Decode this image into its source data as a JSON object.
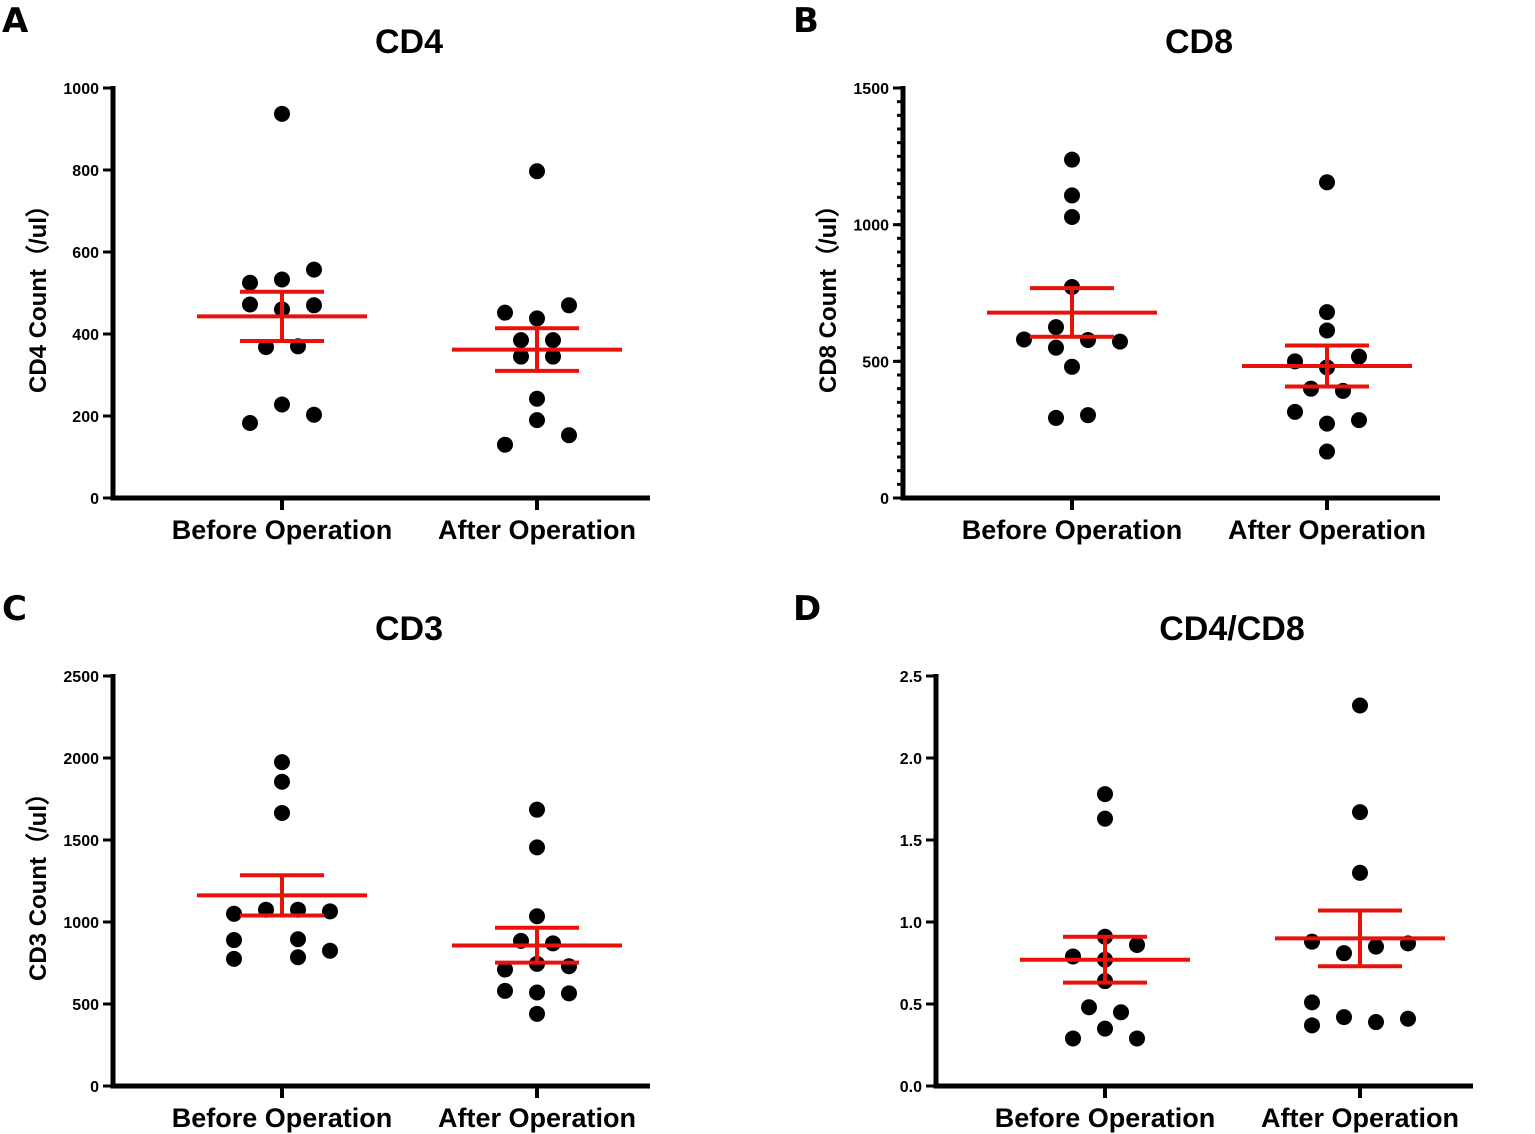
{
  "figure": {
    "marker_color": "#000000",
    "summary_color": "#e8120c",
    "axis_color": "#000000"
  },
  "chart_data": [
    {
      "panel": "A",
      "type": "scatter",
      "title": "CD4",
      "ylabel": "CD4 Count（/ul）",
      "xlabel": "",
      "categories": [
        "Before Operation",
        "After Operation"
      ],
      "ylim": [
        0,
        1000
      ],
      "yticks": [
        0,
        200,
        400,
        600,
        800,
        1000
      ],
      "ytick_labels": [
        "0",
        "200",
        "400",
        "600",
        "800",
        "1000"
      ],
      "minor_ticks": false,
      "series": [
        {
          "name": "Before Operation",
          "points": [
            {
              "offset": 0,
              "value": 937
            },
            {
              "offset": -1,
              "value": 525
            },
            {
              "offset": 0,
              "value": 533
            },
            {
              "offset": 1,
              "value": 557
            },
            {
              "offset": -1,
              "value": 472
            },
            {
              "offset": 1,
              "value": 470
            },
            {
              "offset": 0,
              "value": 460
            },
            {
              "offset": -0.5,
              "value": 368
            },
            {
              "offset": 0.5,
              "value": 370
            },
            {
              "offset": 0,
              "value": 228
            },
            {
              "offset": 1,
              "value": 203
            },
            {
              "offset": -1,
              "value": 183
            }
          ],
          "mean": 443,
          "sem_low": 383,
          "sem_high": 503
        },
        {
          "name": "After Operation",
          "points": [
            {
              "offset": 0,
              "value": 797
            },
            {
              "offset": -1,
              "value": 452
            },
            {
              "offset": 0,
              "value": 438
            },
            {
              "offset": 1,
              "value": 470
            },
            {
              "offset": -0.5,
              "value": 385
            },
            {
              "offset": 0.5,
              "value": 385
            },
            {
              "offset": -0.5,
              "value": 345
            },
            {
              "offset": 0.5,
              "value": 345
            },
            {
              "offset": 0,
              "value": 242
            },
            {
              "offset": 0,
              "value": 190
            },
            {
              "offset": 1,
              "value": 153
            },
            {
              "offset": -1,
              "value": 130
            }
          ],
          "mean": 362,
          "sem_low": 310,
          "sem_high": 414
        }
      ]
    },
    {
      "panel": "B",
      "type": "scatter",
      "title": "CD8",
      "ylabel": "CD8 Count（/ul）",
      "xlabel": "",
      "categories": [
        "Before Operation",
        "After Operation"
      ],
      "ylim": [
        0,
        1500
      ],
      "yticks": [
        0,
        500,
        1000,
        1500
      ],
      "ytick_labels": [
        "0",
        "500",
        "1000",
        "1500"
      ],
      "minor_ticks": true,
      "series": [
        {
          "name": "Before Operation",
          "points": [
            {
              "offset": 0,
              "value": 1238
            },
            {
              "offset": 0,
              "value": 1107
            },
            {
              "offset": 0,
              "value": 1028
            },
            {
              "offset": 0,
              "value": 772
            },
            {
              "offset": -0.5,
              "value": 625
            },
            {
              "offset": -1.5,
              "value": 580
            },
            {
              "offset": 0.5,
              "value": 578
            },
            {
              "offset": 1.5,
              "value": 572
            },
            {
              "offset": -0.5,
              "value": 550
            },
            {
              "offset": 0,
              "value": 480
            },
            {
              "offset": 0.5,
              "value": 303
            },
            {
              "offset": -0.5,
              "value": 293
            }
          ],
          "mean": 678,
          "sem_low": 590,
          "sem_high": 768
        },
        {
          "name": "After Operation",
          "points": [
            {
              "offset": 0,
              "value": 1155
            },
            {
              "offset": 0,
              "value": 680
            },
            {
              "offset": 0,
              "value": 613
            },
            {
              "offset": 1,
              "value": 517
            },
            {
              "offset": -1,
              "value": 500
            },
            {
              "offset": 0,
              "value": 478
            },
            {
              "offset": -0.5,
              "value": 400
            },
            {
              "offset": 0.5,
              "value": 392
            },
            {
              "offset": -1,
              "value": 315
            },
            {
              "offset": 0,
              "value": 272
            },
            {
              "offset": 1,
              "value": 285
            },
            {
              "offset": 0,
              "value": 170
            }
          ],
          "mean": 483,
          "sem_low": 408,
          "sem_high": 558
        }
      ]
    },
    {
      "panel": "C",
      "type": "scatter",
      "title": "CD3",
      "ylabel": "CD3 Count（/ul）",
      "xlabel": "",
      "categories": [
        "Before Operation",
        "After Operation"
      ],
      "ylim": [
        0,
        2500
      ],
      "yticks": [
        0,
        500,
        1000,
        1500,
        2000,
        2500
      ],
      "ytick_labels": [
        "0",
        "500",
        "1000",
        "1500",
        "2000",
        "2500"
      ],
      "minor_ticks": false,
      "series": [
        {
          "name": "Before Operation",
          "points": [
            {
              "offset": 0,
              "value": 1975
            },
            {
              "offset": 0,
              "value": 1855
            },
            {
              "offset": 0,
              "value": 1665
            },
            {
              "offset": -0.5,
              "value": 1075
            },
            {
              "offset": 0.5,
              "value": 1075
            },
            {
              "offset": -1.5,
              "value": 1050
            },
            {
              "offset": 1.5,
              "value": 1065
            },
            {
              "offset": -1.5,
              "value": 890
            },
            {
              "offset": 0.5,
              "value": 895
            },
            {
              "offset": 1.5,
              "value": 825
            },
            {
              "offset": -1.5,
              "value": 775
            },
            {
              "offset": 0.5,
              "value": 785
            }
          ],
          "mean": 1162,
          "sem_low": 1040,
          "sem_high": 1285
        },
        {
          "name": "After Operation",
          "points": [
            {
              "offset": 0,
              "value": 1685
            },
            {
              "offset": 0,
              "value": 1455
            },
            {
              "offset": 0,
              "value": 1035
            },
            {
              "offset": -0.5,
              "value": 885
            },
            {
              "offset": 0.5,
              "value": 870
            },
            {
              "offset": 0,
              "value": 745
            },
            {
              "offset": -1,
              "value": 710
            },
            {
              "offset": 1,
              "value": 730
            },
            {
              "offset": -1,
              "value": 580
            },
            {
              "offset": 1,
              "value": 565
            },
            {
              "offset": 0,
              "value": 570
            },
            {
              "offset": 0,
              "value": 440
            }
          ],
          "mean": 857,
          "sem_low": 752,
          "sem_high": 965
        }
      ]
    },
    {
      "panel": "D",
      "type": "scatter",
      "title": "CD4/CD8",
      "ylabel": "",
      "xlabel": "",
      "categories": [
        "Before Operation",
        "After Operation"
      ],
      "ylim": [
        0,
        2.5
      ],
      "yticks": [
        0,
        0.5,
        1.0,
        1.5,
        2.0,
        2.5
      ],
      "ytick_labels": [
        "0.0",
        "0.5",
        "1.0",
        "1.5",
        "2.0",
        "2.5"
      ],
      "minor_ticks": false,
      "series": [
        {
          "name": "Before Operation",
          "points": [
            {
              "offset": 0,
              "value": 1.78
            },
            {
              "offset": 0,
              "value": 1.63
            },
            {
              "offset": 0,
              "value": 0.91
            },
            {
              "offset": 1,
              "value": 0.86
            },
            {
              "offset": -1,
              "value": 0.79
            },
            {
              "offset": 0,
              "value": 0.77
            },
            {
              "offset": 0,
              "value": 0.64
            },
            {
              "offset": -0.5,
              "value": 0.48
            },
            {
              "offset": 0.5,
              "value": 0.45
            },
            {
              "offset": 0,
              "value": 0.35
            },
            {
              "offset": -1,
              "value": 0.29
            },
            {
              "offset": 1,
              "value": 0.29
            }
          ],
          "mean": 0.77,
          "sem_low": 0.63,
          "sem_high": 0.91
        },
        {
          "name": "After Operation",
          "points": [
            {
              "offset": 0,
              "value": 2.32
            },
            {
              "offset": 0,
              "value": 1.67
            },
            {
              "offset": 0,
              "value": 1.3
            },
            {
              "offset": -1.5,
              "value": 0.88
            },
            {
              "offset": 1.5,
              "value": 0.87
            },
            {
              "offset": 0.5,
              "value": 0.85
            },
            {
              "offset": -0.5,
              "value": 0.81
            },
            {
              "offset": -1.5,
              "value": 0.51
            },
            {
              "offset": -0.5,
              "value": 0.42
            },
            {
              "offset": 0.5,
              "value": 0.39
            },
            {
              "offset": 1.5,
              "value": 0.41
            },
            {
              "offset": -1.5,
              "value": 0.37
            }
          ],
          "mean": 0.9,
          "sem_low": 0.73,
          "sem_high": 1.07
        }
      ]
    }
  ]
}
